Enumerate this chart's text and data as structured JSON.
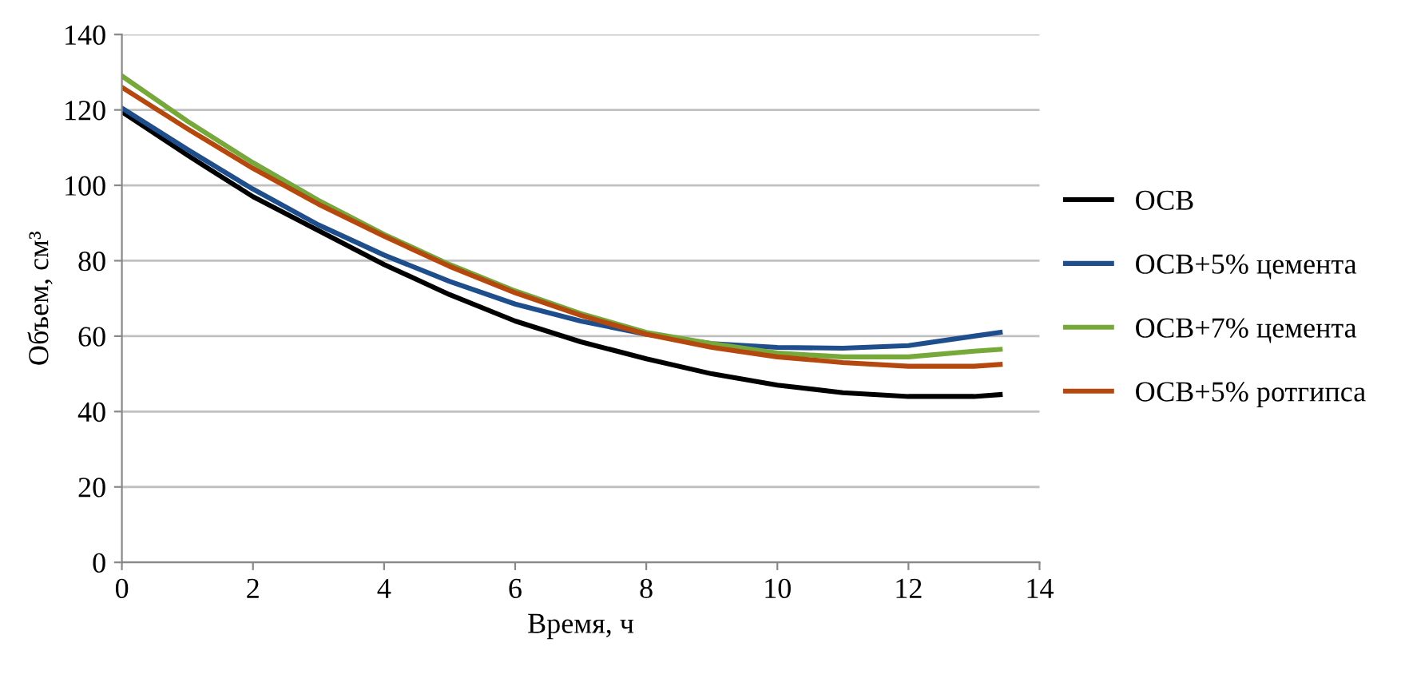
{
  "chart_data": {
    "type": "line",
    "xlabel": "Время, ч",
    "ylabel": "Объем, см³",
    "x": [
      0,
      1,
      2,
      3,
      4,
      5,
      6,
      7,
      8,
      9,
      10,
      11,
      12,
      13,
      13.4
    ],
    "series": [
      {
        "name": "ОСВ",
        "color": "#000000",
        "values": [
          119.5,
          108,
          97,
          88,
          79,
          71,
          64,
          58.5,
          54,
          50,
          47,
          45,
          44,
          44,
          44.5
        ]
      },
      {
        "name": "ОСВ+5% цемента",
        "color": "#1f4e8c",
        "values": [
          120.5,
          109.5,
          99,
          89.5,
          81.5,
          74.5,
          68.5,
          64,
          60.5,
          58,
          57,
          56.8,
          57.5,
          60,
          61
        ]
      },
      {
        "name": "ОСВ+7% цемента",
        "color": "#77a83a",
        "values": [
          129,
          117,
          106,
          96,
          87,
          79,
          72,
          66,
          61,
          58,
          55.5,
          54.5,
          54.5,
          56,
          56.5
        ]
      },
      {
        "name": "ОСВ+5% ротгипса",
        "color": "#b5480e",
        "values": [
          126,
          115,
          104.5,
          95,
          86.5,
          78.5,
          71.5,
          65.5,
          60.5,
          57,
          54.5,
          53,
          52,
          52,
          52.5
        ]
      }
    ],
    "xlim": [
      0,
      14
    ],
    "xticks": [
      0,
      2,
      4,
      6,
      8,
      10,
      12,
      14
    ],
    "ylim": [
      0,
      140
    ],
    "yticks": [
      0,
      20,
      40,
      60,
      80,
      100,
      120,
      140
    ],
    "grid": "y",
    "legend": "right",
    "marker": "none",
    "line_style": "solid"
  }
}
